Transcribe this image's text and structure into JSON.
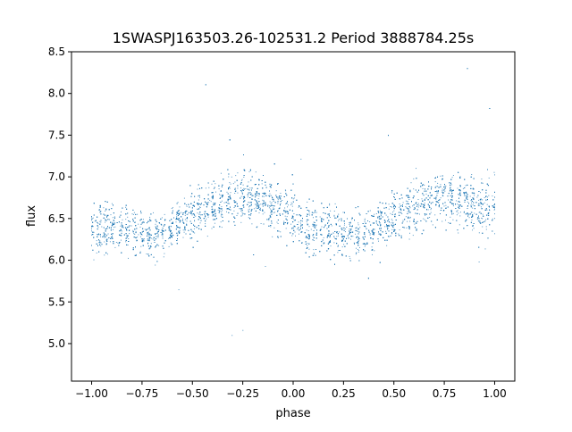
{
  "chart_data": {
    "type": "scatter",
    "title": "1SWASPJ163503.26-102531.2 Period 3888784.25s",
    "xlabel": "phase",
    "ylabel": "flux",
    "xlim": [
      -1.1,
      1.1
    ],
    "ylim": [
      4.55,
      8.5
    ],
    "xticks": [
      -1.0,
      -0.75,
      -0.5,
      -0.25,
      0.0,
      0.25,
      0.5,
      0.75,
      1.0
    ],
    "xtick_labels": [
      "−1.00",
      "−0.75",
      "−0.50",
      "−0.25",
      "0.00",
      "0.25",
      "0.50",
      "0.75",
      "1.00"
    ],
    "yticks": [
      5.0,
      5.5,
      6.0,
      6.5,
      7.0,
      7.5,
      8.0,
      8.5
    ],
    "ytick_labels": [
      "5.0",
      "5.5",
      "6.0",
      "6.5",
      "7.0",
      "7.5",
      "8.0",
      "8.5"
    ],
    "grid": false,
    "marker_color": "#1f77b4",
    "series": [
      {
        "note": "dense folded light curve, summarized by phase bin (x = phase bin center, y = median flux, spread = typical half-range)",
        "x": [
          -0.95,
          -0.85,
          -0.75,
          -0.65,
          -0.55,
          -0.45,
          -0.35,
          -0.25,
          -0.15,
          -0.05,
          0.05,
          0.15,
          0.25,
          0.35,
          0.45,
          0.55,
          0.65,
          0.75,
          0.85,
          0.95
        ],
        "y": [
          6.4,
          6.4,
          6.3,
          6.3,
          6.5,
          6.6,
          6.7,
          6.8,
          6.7,
          6.6,
          6.4,
          6.4,
          6.3,
          6.3,
          6.5,
          6.6,
          6.7,
          6.8,
          6.7,
          6.6
        ],
        "spread": [
          0.55,
          0.5,
          0.5,
          0.45,
          0.45,
          0.5,
          0.5,
          0.55,
          0.5,
          0.6,
          0.55,
          0.5,
          0.5,
          0.45,
          0.45,
          0.5,
          0.5,
          0.55,
          0.5,
          0.6
        ]
      }
    ]
  }
}
